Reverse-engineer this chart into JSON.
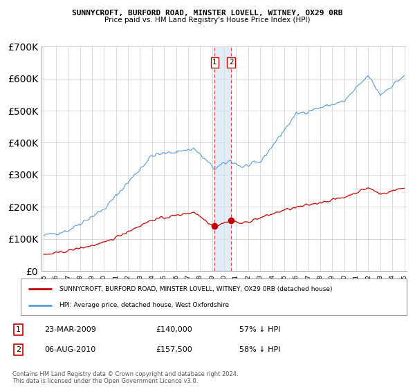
{
  "title": "SUNNYCROFT, BURFORD ROAD, MINSTER LOVELL, WITNEY, OX29 0RB",
  "subtitle": "Price paid vs. HM Land Registry's House Price Index (HPI)",
  "legend_red": "SUNNYCROFT, BURFORD ROAD, MINSTER LOVELL, WITNEY, OX29 0RB (detached house)",
  "legend_blue": "HPI: Average price, detached house, West Oxfordshire",
  "transaction1_date": "23-MAR-2009",
  "transaction1_price": "£140,000",
  "transaction1_hpi": "57% ↓ HPI",
  "transaction1_year": 2009.22,
  "transaction1_price_val": 140000,
  "transaction2_date": "06-AUG-2010",
  "transaction2_price": "£157,500",
  "transaction2_hpi": "58% ↓ HPI",
  "transaction2_year": 2010.59,
  "transaction2_price_val": 157500,
  "footer": "Contains HM Land Registry data © Crown copyright and database right 2024.\nThis data is licensed under the Open Government Licence v3.0.",
  "ylim": [
    0,
    700000
  ],
  "yticks": [
    0,
    100000,
    200000,
    300000,
    400000,
    500000,
    600000,
    700000
  ],
  "hpi_color": "#5b9bd5",
  "price_color": "#c00000",
  "background_color": "#ffffff",
  "grid_color": "#cccccc",
  "marker_bg_color": "#cfe0f0",
  "xmin": 1995,
  "xmax": 2025
}
